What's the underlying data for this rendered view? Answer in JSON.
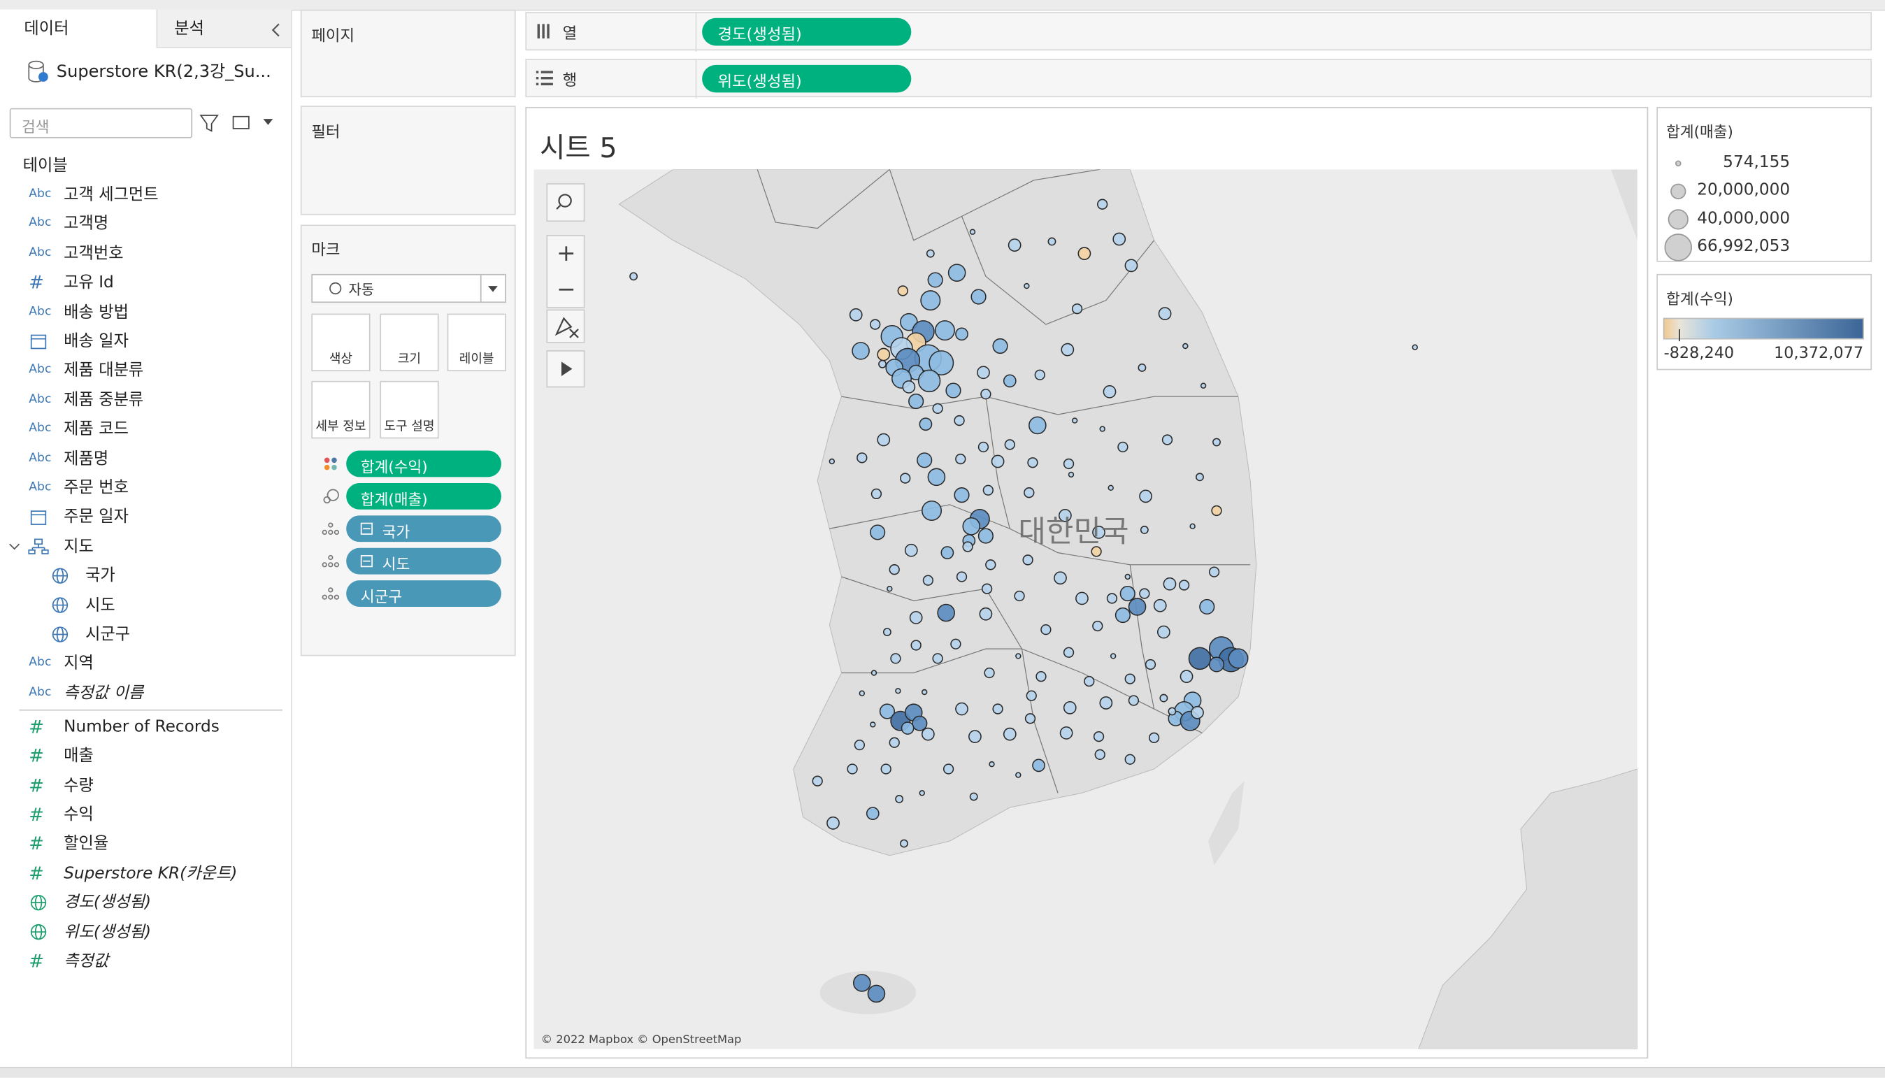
{
  "data_pane": {
    "tabs": [
      "데이터",
      "분석"
    ],
    "source": "Superstore KR(2,3강_Su...",
    "search_placeholder": "검색",
    "section": "테이블",
    "fields": [
      {
        "icon": "Abc",
        "name": "고객 세그먼트"
      },
      {
        "icon": "Abc",
        "name": "고객명"
      },
      {
        "icon": "Abc",
        "name": "고객번호"
      },
      {
        "icon": "#",
        "name": "고유 Id"
      },
      {
        "icon": "Abc",
        "name": "배송 방법"
      },
      {
        "icon": "date",
        "name": "배송 일자"
      },
      {
        "icon": "Abc",
        "name": "제품 대분류"
      },
      {
        "icon": "Abc",
        "name": "제품 중분류"
      },
      {
        "icon": "Abc",
        "name": "제품 코드"
      },
      {
        "icon": "Abc",
        "name": "제품명"
      },
      {
        "icon": "Abc",
        "name": "주문 번호"
      },
      {
        "icon": "date",
        "name": "주문 일자"
      },
      {
        "icon": "hier",
        "name": "지도",
        "expand": true
      },
      {
        "icon": "geo",
        "name": "국가",
        "indent": true
      },
      {
        "icon": "geo",
        "name": "시도",
        "indent": true
      },
      {
        "icon": "geo",
        "name": "시군구",
        "indent": true
      },
      {
        "icon": "Abc",
        "name": "지역"
      },
      {
        "icon": "Abc",
        "name": "측정값 이름",
        "italic": true
      },
      {
        "icon": "#",
        "name": "Number of Records",
        "role": "measure"
      },
      {
        "icon": "#",
        "name": "매출",
        "role": "measure"
      },
      {
        "icon": "#",
        "name": "수량",
        "role": "measure"
      },
      {
        "icon": "#",
        "name": "수익",
        "role": "measure"
      },
      {
        "icon": "#",
        "name": "할인율",
        "role": "measure"
      },
      {
        "icon": "#",
        "name": "Superstore KR(카운트)",
        "role": "measure",
        "italic": true
      },
      {
        "icon": "geo",
        "name": "경도(생성됨)",
        "role": "measure",
        "italic": true
      },
      {
        "icon": "geo",
        "name": "위도(생성됨)",
        "role": "measure",
        "italic": true
      },
      {
        "icon": "#",
        "name": "측정값",
        "role": "measure",
        "italic": true
      }
    ]
  },
  "shelves": {
    "pages": "페이지",
    "filters": "필터",
    "marks": {
      "title": "마크",
      "mark_type": "자동",
      "buttons": [
        "색상",
        "크기",
        "레이블",
        "세부 정보",
        "도구 설명"
      ],
      "pills": [
        {
          "name": "합계(수익)",
          "role": "measure",
          "shelf": "color"
        },
        {
          "name": "합계(매출)",
          "role": "measure",
          "shelf": "size"
        },
        {
          "name": "국가",
          "role": "dim",
          "shelf": "detail",
          "collapse": true
        },
        {
          "name": "시도",
          "role": "dim",
          "shelf": "detail",
          "collapse": true
        },
        {
          "name": "시군구",
          "role": "dim",
          "shelf": "detail"
        }
      ]
    },
    "columns": {
      "label": "열",
      "pill": "경도(생성됨)"
    },
    "rows": {
      "label": "행",
      "pill": "위도(생성됨)"
    }
  },
  "sheet": {
    "title": "시트 5",
    "map_label": "대한민국",
    "attribution": "© 2022 Mapbox © OpenStreetMap"
  },
  "legends": {
    "size": {
      "title": "합계(매출)",
      "items": [
        "574,155",
        "20,000,000",
        "40,000,000",
        "66,992,053"
      ]
    },
    "color": {
      "title": "합계(수익)",
      "min": "-828,240",
      "max": "10,372,077"
    }
  }
}
